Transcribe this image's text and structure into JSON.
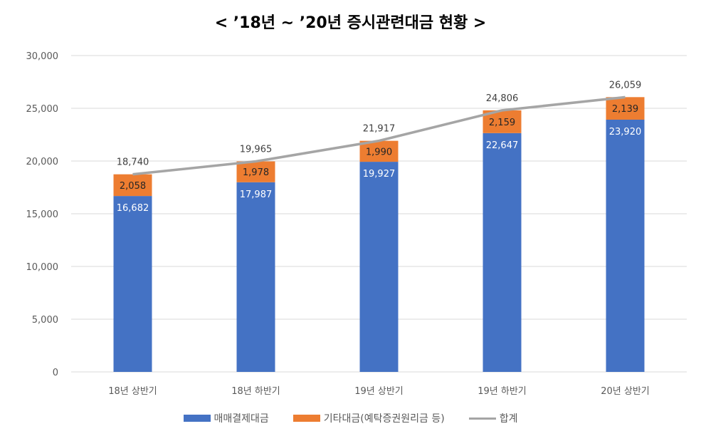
{
  "chart_data": {
    "type": "bar",
    "stacked": true,
    "title": "< ’18년 ~ ’20년 증시관련대금 현황 >",
    "categories": [
      "18년 상반기",
      "18년 하반기",
      "19년 상반기",
      "19년 하반기",
      "20년 상반기"
    ],
    "series": [
      {
        "name": "매매결제대금",
        "type": "bar",
        "color": "#4472C4",
        "values": [
          16682,
          17987,
          19927,
          22647,
          23920
        ],
        "labels": [
          "16,682",
          "17,987",
          "19,927",
          "22,647",
          "23,920"
        ]
      },
      {
        "name": "기타대금(예탁증권원리금 등)",
        "type": "bar",
        "color": "#ED7D31",
        "values": [
          2058,
          1978,
          1990,
          2159,
          2139
        ],
        "labels": [
          "2,058",
          "1,978",
          "1,990",
          "2,159",
          "2,139"
        ]
      },
      {
        "name": "합계",
        "type": "line",
        "color": "#A5A5A5",
        "values": [
          18740,
          19965,
          21917,
          24806,
          26059
        ],
        "labels": [
          "18,740",
          "19,965",
          "21,917",
          "24,806",
          "26,059"
        ]
      }
    ],
    "ylim": [
      0,
      30000
    ],
    "yticks": [
      0,
      5000,
      10000,
      15000,
      20000,
      25000,
      30000
    ],
    "ytick_labels": [
      "0",
      "5,000",
      "10,000",
      "15,000",
      "20,000",
      "25,000",
      "30,000"
    ],
    "grid": true,
    "legend": "bottom"
  }
}
